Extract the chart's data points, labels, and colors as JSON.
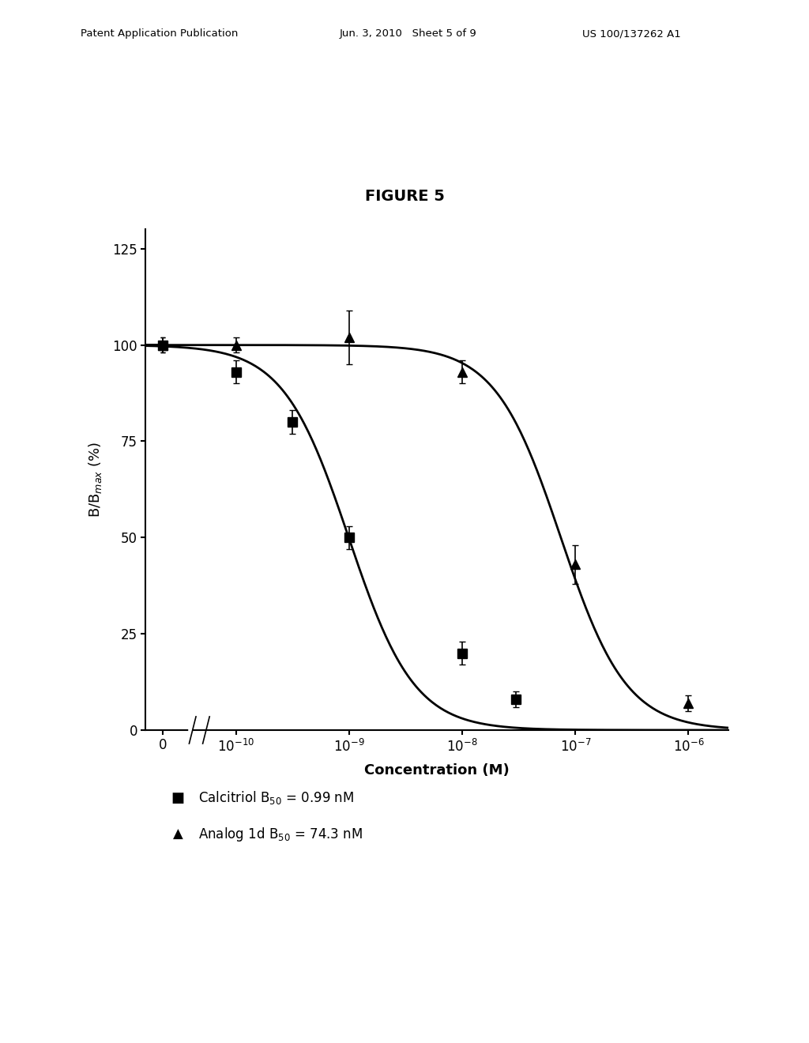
{
  "title": "FIGURE 5",
  "xlabel": "Concentration (M)",
  "ylabel": "B/B$_{max}$ (%)",
  "calcitriol_data_x": [
    1e-10,
    3.16e-10,
    1e-09,
    1e-08,
    3e-08
  ],
  "calcitriol_data_y": [
    93,
    80,
    50,
    20,
    8
  ],
  "calcitriol_err": [
    3,
    3,
    3,
    3,
    2
  ],
  "analog_data_x": [
    1e-10,
    1e-09,
    1e-08,
    1e-07,
    1e-06
  ],
  "analog_data_y": [
    100,
    102,
    93,
    43,
    7
  ],
  "analog_err": [
    2,
    7,
    3,
    5,
    2
  ],
  "calcitriol_B50": 9.9e-10,
  "analog_B50": 7.43e-08,
  "hill_n_calc": 1.5,
  "hill_n_analog": 1.5,
  "ylim": [
    0,
    130
  ],
  "yticks": [
    0,
    25,
    50,
    75,
    100,
    125
  ],
  "background_color": "#ffffff",
  "header_left": "Patent Application Publication",
  "header_mid": "Jun. 3, 2010   Sheet 5 of 9",
  "header_right": "US 100/137262 A1",
  "legend1": "Calcitriol B$_{50}$ = 0.99 nM",
  "legend2": "Analog 1d B$_{50}$ = 74.3 nM"
}
